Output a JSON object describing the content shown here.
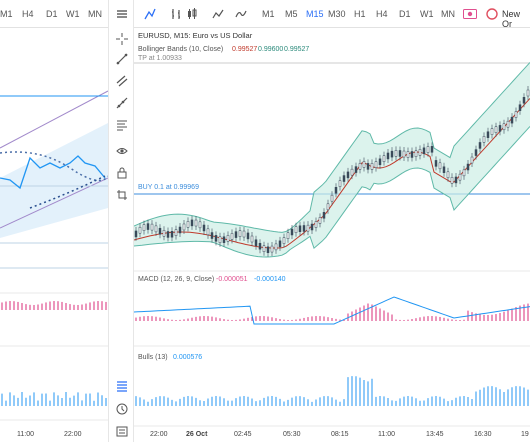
{
  "left_toolbar": {
    "timeframes": [
      "M1",
      "H4",
      "D1",
      "W1",
      "MN"
    ]
  },
  "right_toolbar": {
    "timeframes": [
      "M1",
      "M5",
      "M15",
      "M30",
      "H1",
      "H4",
      "D1",
      "W1",
      "MN"
    ],
    "active": "M15",
    "new_order_label": "New Or"
  },
  "chart": {
    "title": "EURUSD, M15: Euro vs US Dollar",
    "bb_label": "Bollinger Bands (10, Close)",
    "bb_v1": "0.99527",
    "bb_v2": "0.99600",
    "bb_v3": "0.99527",
    "tp_label": "TP at 1.00933",
    "buy_label": "BUY 0.1 at 0.99969",
    "macd_label": "MACD (12, 26, 9, Close)",
    "macd_v1": "-0.000051",
    "macd_v2": "-0.000140",
    "bulls_label": "Bulls (13)",
    "bulls_v": "0.000576",
    "time_axis": [
      "22:00",
      "26 Oct",
      "02:45",
      "05:30",
      "08:15",
      "11:00",
      "13:45",
      "16:30",
      "19"
    ]
  },
  "left_chart": {
    "time_axis": [
      "11:00",
      "22:00"
    ]
  },
  "colors": {
    "accent": "#2b6ff6",
    "bb_fill": "#cdeee6",
    "bb_line": "#5fb9a8",
    "macd_hist": "#e04f8f",
    "signal": "#2196f3"
  }
}
